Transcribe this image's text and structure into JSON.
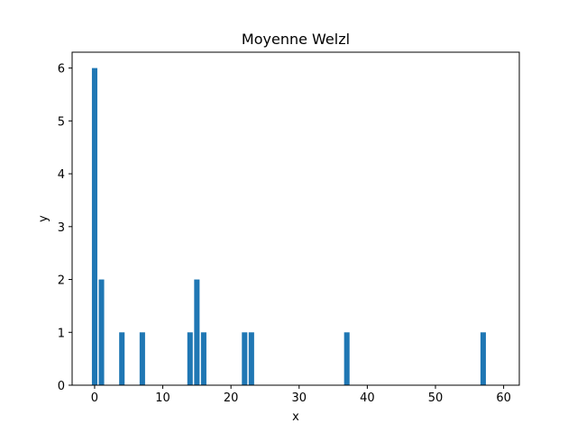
{
  "chart_data": {
    "type": "bar",
    "title": "Moyenne Welzl",
    "xlabel": "x",
    "ylabel": "y",
    "x": [
      0,
      1,
      4,
      7,
      14,
      15,
      16,
      22,
      23,
      37,
      57
    ],
    "values": [
      6,
      2,
      1,
      1,
      1,
      2,
      1,
      1,
      1,
      1,
      1
    ],
    "bar_width": 0.8,
    "xlim": [
      -3.3,
      62.3
    ],
    "ylim": [
      0,
      6.3
    ],
    "xticks": [
      0,
      10,
      20,
      30,
      40,
      50,
      60
    ],
    "yticks": [
      0,
      1,
      2,
      3,
      4,
      5,
      6
    ],
    "grid": false,
    "bar_color": "#1f77b4"
  }
}
